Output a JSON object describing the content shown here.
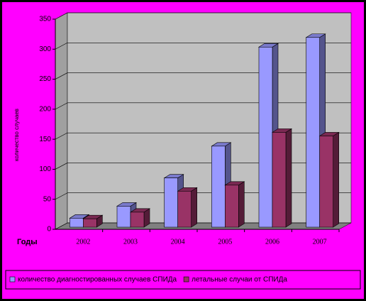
{
  "chart_data": {
    "type": "bar3d",
    "y_label": "количество случаев",
    "x_label": "Годы",
    "categories": [
      "2002",
      "2003",
      "2004",
      "2005",
      "2006",
      "2007"
    ],
    "series": [
      {
        "name": "количество диагностированных случаев СПИДа",
        "color": "#9999ff",
        "values": [
          15,
          35,
          82,
          135,
          300,
          316
        ]
      },
      {
        "name": "летальные случаи от СПИДа",
        "color": "#993366",
        "values": [
          14,
          25,
          60,
          70,
          158,
          152
        ]
      }
    ],
    "ylim": [
      0,
      350
    ],
    "yticks": [
      0,
      50,
      100,
      150,
      200,
      250,
      300,
      350
    ],
    "grid": true,
    "legend": "bottom"
  }
}
